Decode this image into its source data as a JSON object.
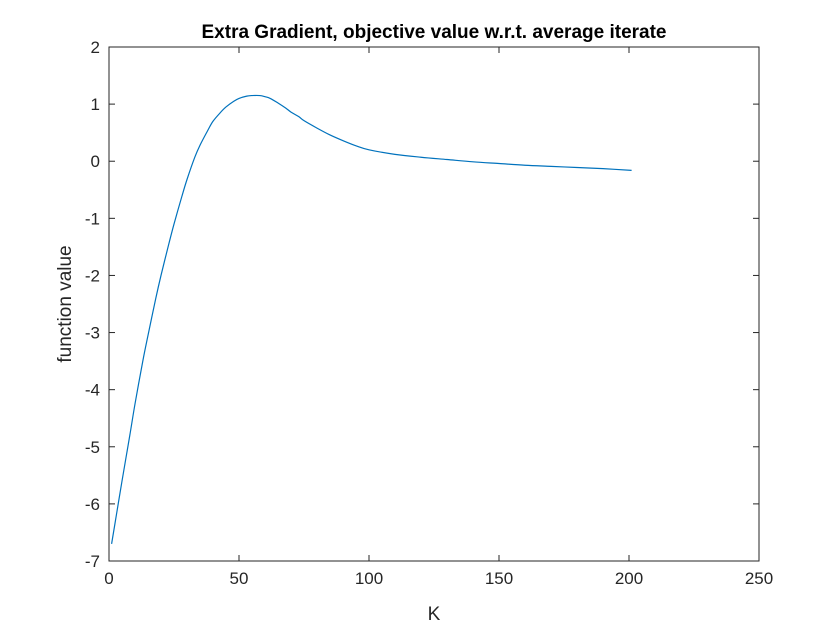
{
  "chart_data": {
    "type": "line",
    "title": "Extra Gradient, objective value w.r.t. average iterate",
    "xlabel": "K",
    "ylabel": "function value",
    "xlim": [
      0,
      250
    ],
    "ylim": [
      -7,
      2
    ],
    "xticks": [
      0,
      50,
      100,
      150,
      200,
      250
    ],
    "yticks": [
      -7,
      -6,
      -5,
      -4,
      -3,
      -2,
      -1,
      0,
      1,
      2
    ],
    "xtick_labels": [
      "0",
      "50",
      "100",
      "150",
      "200",
      "250"
    ],
    "ytick_labels": [
      "-7",
      "-6",
      "-5",
      "-4",
      "-3",
      "-2",
      "-1",
      "0",
      "1",
      "2"
    ],
    "grid": false,
    "box": true,
    "series": [
      {
        "color": "#0072BD",
        "x": [
          1,
          3,
          5,
          8,
          10,
          13,
          15,
          18,
          20,
          23,
          25,
          28,
          30,
          33,
          35,
          38,
          40,
          43,
          45,
          48,
          50,
          53,
          55,
          58,
          60,
          62,
          65,
          68,
          70,
          73,
          75,
          80,
          85,
          90,
          95,
          100,
          110,
          120,
          130,
          140,
          150,
          160,
          170,
          180,
          190,
          201
        ],
        "y": [
          -6.7,
          -6.15,
          -5.6,
          -4.8,
          -4.25,
          -3.5,
          -3.05,
          -2.4,
          -2.0,
          -1.45,
          -1.1,
          -0.62,
          -0.32,
          0.07,
          0.28,
          0.54,
          0.7,
          0.86,
          0.95,
          1.05,
          1.1,
          1.14,
          1.15,
          1.15,
          1.13,
          1.1,
          1.02,
          0.93,
          0.86,
          0.78,
          0.71,
          0.58,
          0.46,
          0.36,
          0.27,
          0.2,
          0.12,
          0.07,
          0.03,
          -0.01,
          -0.04,
          -0.07,
          -0.09,
          -0.11,
          -0.13,
          -0.16
        ]
      }
    ]
  }
}
